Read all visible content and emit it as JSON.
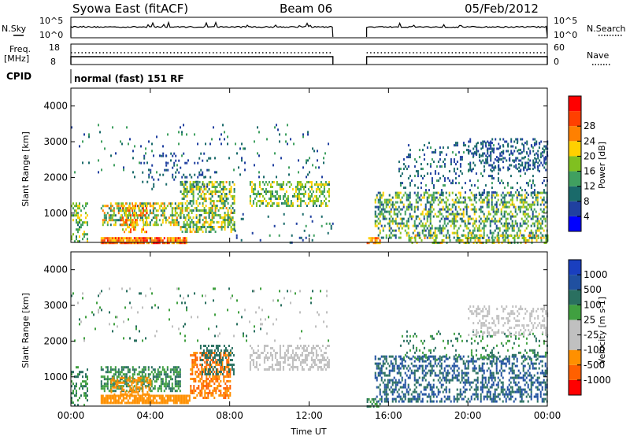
{
  "header": {
    "station": "Syowa East (fitACF)",
    "beam": "Beam 06",
    "date": "05/Feb/2012"
  },
  "strip_labels": {
    "nsky": "N.Sky",
    "nsearch": "N.Search",
    "freq_top": "Freq.",
    "freq_unit": "[MHz]",
    "nave": "Nave",
    "cpid": "CPID",
    "cpid_value": "normal (fast) 151 RF",
    "noise_tick_high": "10^5",
    "noise_tick_low": "10^0",
    "freq_ticks": [
      "18",
      "8"
    ],
    "nave_ticks": [
      "60",
      "0"
    ]
  },
  "colors": {
    "power_scale": [
      "#0000ff",
      "#2040a0",
      "#1a6a6a",
      "#40a060",
      "#80c020",
      "#ffd000",
      "#ff8000",
      "#ff4000",
      "#ff0000"
    ],
    "velocity_scale": [
      "#1a3fbf",
      "#2050a0",
      "#2a7060",
      "#40a040",
      "#c0c0c0",
      "#c0c0c0",
      "#ff9000",
      "#ff6000",
      "#ff0000"
    ]
  },
  "chart_data": [
    {
      "type": "line",
      "name": "noise-strip",
      "x_unit": "UT hours",
      "xlim": [
        0,
        24
      ],
      "series": [
        {
          "name": "N.Sky",
          "segments": [
            [
              0.0,
              13.2
            ],
            [
              14.9,
              24.0
            ]
          ],
          "level_log10": 4.5
        },
        {
          "name": "N.Search",
          "segments": [
            [
              0.0,
              13.2
            ],
            [
              14.9,
              24.0
            ]
          ],
          "level_log10": 4.5
        }
      ],
      "ylabel_left": "N.Sky",
      "ylabel_right": "N.Search",
      "yticks_left": [
        "10^5",
        "10^0"
      ],
      "yticks_right": [
        "10^5",
        "10^0"
      ]
    },
    {
      "type": "line",
      "name": "frequency-nave-strip",
      "xlim": [
        0,
        24
      ],
      "series": [
        {
          "name": "Freq.",
          "segments": [
            [
              0.0,
              13.2
            ],
            [
              14.9,
              24.0
            ]
          ],
          "value": 14
        },
        {
          "name": "Nave",
          "segments": [
            [
              0.0,
              13.2
            ],
            [
              14.9,
              24.0
            ]
          ],
          "value": 20
        }
      ],
      "yticks_left": [
        "18",
        "8"
      ],
      "yticks_right": [
        "60",
        "0"
      ]
    },
    {
      "type": "heatmap",
      "name": "power-panel",
      "xlabel": "",
      "ylabel": "Slant Range [km]",
      "xlim": [
        0,
        24
      ],
      "ylim": [
        180,
        4500
      ],
      "yticks": [
        1000,
        2000,
        3000,
        4000
      ],
      "colorbar": {
        "label": "Power [dB]",
        "ticks": [
          4,
          8,
          12,
          16,
          20,
          24,
          28
        ],
        "range": [
          0,
          32
        ]
      },
      "regions": [
        {
          "t0": 0.0,
          "t1": 0.8,
          "r0": 180,
          "r1": 1300,
          "density": 0.35,
          "v0": 8,
          "v1": 20
        },
        {
          "t0": 1.5,
          "t1": 5.8,
          "r0": 180,
          "r1": 330,
          "density": 0.9,
          "v0": 18,
          "v1": 30
        },
        {
          "t0": 1.5,
          "t1": 5.5,
          "r0": 700,
          "r1": 1300,
          "density": 0.55,
          "v0": 8,
          "v1": 24
        },
        {
          "t0": 2.5,
          "t1": 3.8,
          "r0": 500,
          "r1": 1300,
          "density": 0.5,
          "v0": 16,
          "v1": 28
        },
        {
          "t0": 5.5,
          "t1": 8.2,
          "r0": 500,
          "r1": 1900,
          "density": 0.55,
          "v0": 8,
          "v1": 22
        },
        {
          "t0": 3.5,
          "t1": 7.0,
          "r0": 1700,
          "r1": 2700,
          "density": 0.12,
          "v0": 4,
          "v1": 10
        },
        {
          "t0": 9.0,
          "t1": 13.0,
          "r0": 1200,
          "r1": 1900,
          "density": 0.45,
          "v0": 10,
          "v1": 20
        },
        {
          "t0": 8.0,
          "t1": 13.2,
          "r0": 180,
          "r1": 1000,
          "density": 0.04,
          "v0": 4,
          "v1": 12
        },
        {
          "t0": 14.9,
          "t1": 15.6,
          "r0": 180,
          "r1": 330,
          "density": 0.7,
          "v0": 18,
          "v1": 26
        },
        {
          "t0": 15.3,
          "t1": 24.0,
          "r0": 300,
          "r1": 1600,
          "density": 0.45,
          "v0": 6,
          "v1": 20
        },
        {
          "t0": 17.0,
          "t1": 24.0,
          "r0": 180,
          "r1": 400,
          "density": 0.45,
          "v0": 10,
          "v1": 22
        },
        {
          "t0": 16.5,
          "t1": 24.0,
          "r0": 1500,
          "r1": 3000,
          "density": 0.15,
          "v0": 4,
          "v1": 12
        },
        {
          "t0": 20.0,
          "t1": 24.0,
          "r0": 2200,
          "r1": 3100,
          "density": 0.28,
          "v0": 4,
          "v1": 10
        },
        {
          "t0": 0.0,
          "t1": 13.0,
          "r0": 2000,
          "r1": 3500,
          "density": 0.04,
          "v0": 4,
          "v1": 14
        }
      ]
    },
    {
      "type": "heatmap",
      "name": "velocity-panel",
      "xlabel": "Time UT",
      "ylabel": "Slant Range [km]",
      "xlim": [
        0,
        24
      ],
      "ylim": [
        180,
        4500
      ],
      "xticks": [
        "00:00",
        "04:00",
        "08:00",
        "12:00",
        "16:00",
        "20:00",
        "00:00"
      ],
      "yticks": [
        1000,
        2000,
        3000,
        4000
      ],
      "colorbar": {
        "label": "Velocity [m s-1]",
        "ticks": [
          "1000",
          "500",
          "100",
          "25",
          "-25",
          "-100",
          "-500",
          "-1000"
        ]
      },
      "regions": [
        {
          "t0": 0.0,
          "t1": 0.8,
          "r0": 180,
          "r1": 1300,
          "density": 0.35,
          "v0": 2,
          "v1": 4
        },
        {
          "t0": 1.5,
          "t1": 6.0,
          "r0": 250,
          "r1": 500,
          "density": 0.85,
          "v0": 6,
          "v1": 7
        },
        {
          "t0": 1.5,
          "t1": 5.5,
          "r0": 600,
          "r1": 1300,
          "density": 0.55,
          "v0": 2,
          "v1": 4
        },
        {
          "t0": 2.0,
          "t1": 4.0,
          "r0": 500,
          "r1": 1000,
          "density": 0.5,
          "v0": 6,
          "v1": 7
        },
        {
          "t0": 6.0,
          "t1": 8.0,
          "r0": 400,
          "r1": 1700,
          "density": 0.55,
          "v0": 6,
          "v1": 8
        },
        {
          "t0": 6.5,
          "t1": 8.2,
          "r0": 1100,
          "r1": 1900,
          "density": 0.4,
          "v0": 2,
          "v1": 3
        },
        {
          "t0": 9.0,
          "t1": 13.0,
          "r0": 1200,
          "r1": 1900,
          "density": 0.45,
          "v0": 4,
          "v1": 5
        },
        {
          "t0": 14.9,
          "t1": 15.6,
          "r0": 180,
          "r1": 400,
          "density": 0.6,
          "v0": 2,
          "v1": 4
        },
        {
          "t0": 15.3,
          "t1": 24.0,
          "r0": 300,
          "r1": 1600,
          "density": 0.45,
          "v0": 1,
          "v1": 3
        },
        {
          "t0": 16.5,
          "t1": 24.0,
          "r0": 1500,
          "r1": 2300,
          "density": 0.15,
          "v0": 2,
          "v1": 4
        },
        {
          "t0": 20.0,
          "t1": 24.0,
          "r0": 2200,
          "r1": 3000,
          "density": 0.3,
          "v0": 4,
          "v1": 5
        },
        {
          "t0": 0.0,
          "t1": 13.0,
          "r0": 2000,
          "r1": 3500,
          "density": 0.04,
          "v0": 2,
          "v1": 5
        }
      ]
    }
  ]
}
